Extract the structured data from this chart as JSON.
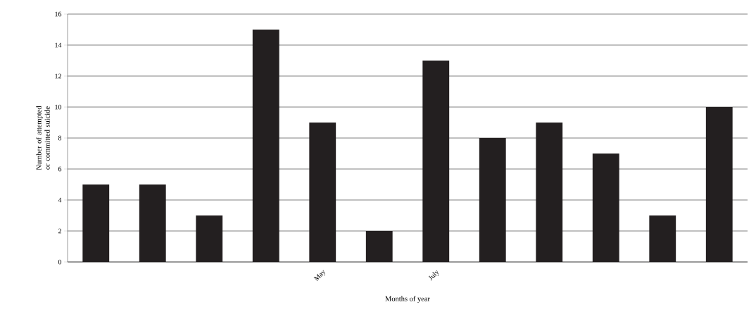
{
  "chart_data": {
    "type": "bar",
    "xlabel": "Months of year",
    "ylabel": "Number of attempted or committed suicide",
    "categories": [
      null,
      null,
      null,
      null,
      "May",
      null,
      "July",
      null,
      null,
      null,
      null,
      null
    ],
    "values": [
      5,
      5,
      3,
      15,
      9,
      2,
      13,
      8,
      9,
      7,
      3,
      10
    ],
    "color": "#231f20",
    "ylim": [
      0,
      16
    ],
    "yticks": [
      0,
      2,
      4,
      6,
      8,
      10,
      12,
      14,
      16
    ],
    "grid": "y"
  }
}
